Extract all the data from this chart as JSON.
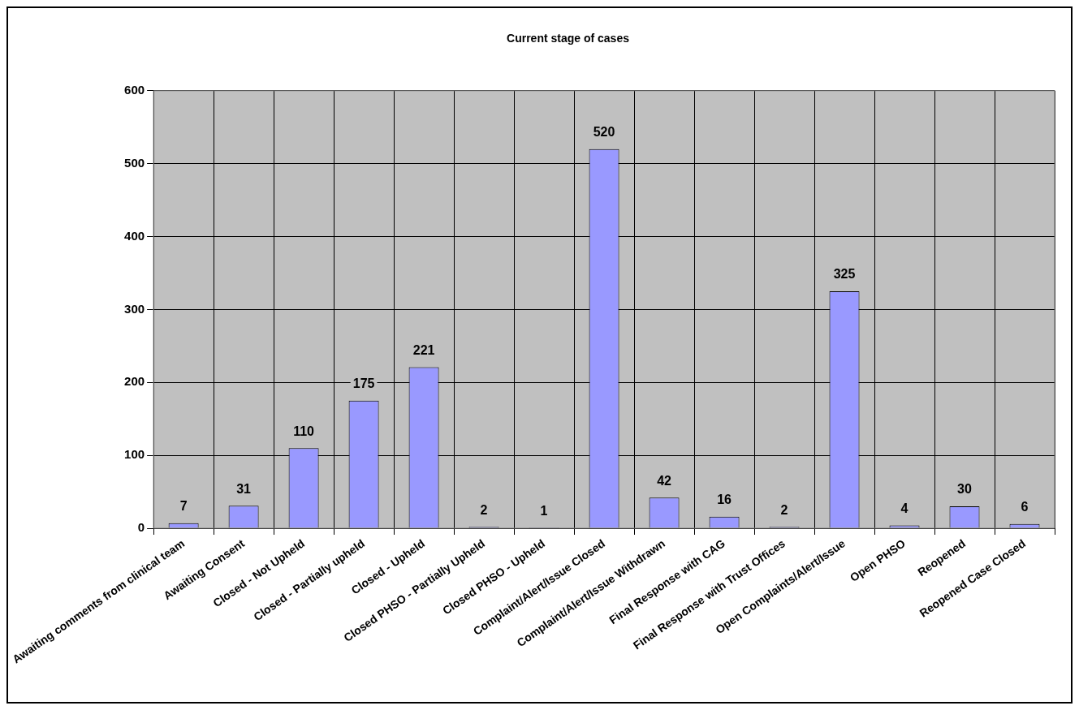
{
  "chart_data": {
    "type": "bar",
    "title": "Current stage of cases",
    "categories": [
      "Awaiting comments from clinical team",
      "Awaiting Consent",
      "Closed - Not Upheld",
      "Closed - Partially upheld",
      "Closed - Upheld",
      "Closed PHSO - Partially Upheld",
      "Closed PHSO - Upheld",
      "Complaint/Alert/Issue Closed",
      "Complaint/Alert/Issue Withdrawn",
      "Final Response with CAG",
      "Final Response with Trust Offices",
      "Open Complaints/Alert/Issue",
      "Open PHSO",
      "Reopened",
      "Reopened Case Closed"
    ],
    "values": [
      7,
      31,
      110,
      175,
      221,
      2,
      1,
      520,
      42,
      16,
      2,
      325,
      4,
      30,
      6
    ],
    "color": "#9999ff",
    "ylim": [
      0,
      600
    ],
    "yticks": [
      0,
      100,
      200,
      300,
      400,
      500,
      600
    ],
    "grid": true,
    "data_labels": true,
    "legend": false
  }
}
